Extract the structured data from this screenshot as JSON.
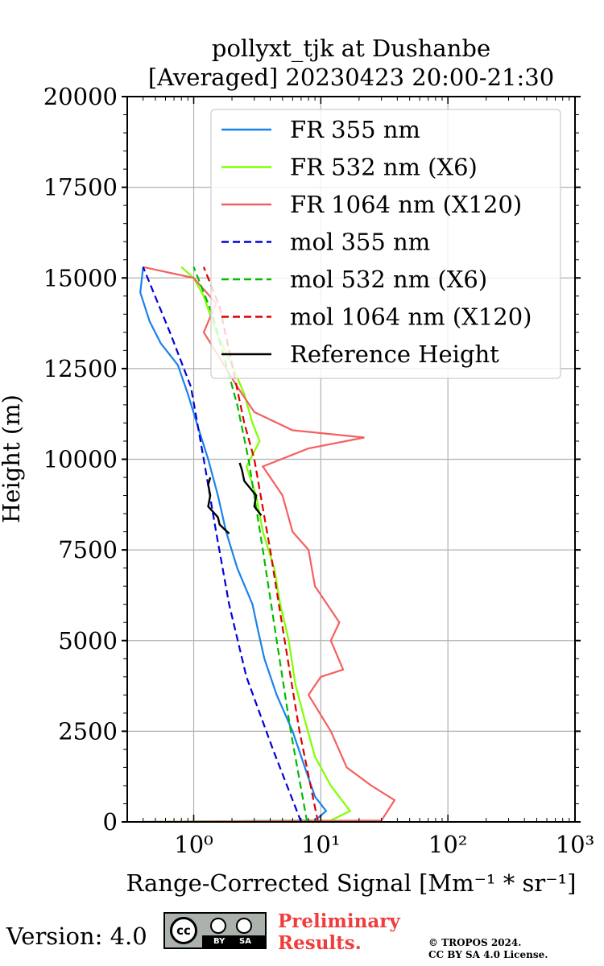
{
  "chart_data": {
    "type": "line",
    "title": [
      "pollyxt_tjk at Dushanbe",
      "[Averaged] 20230423 20:00-21:30"
    ],
    "xlabel": "Range-Corrected Signal [Mm⁻¹ * sr⁻¹]",
    "ylabel": "Height (m)",
    "x_scale": "log",
    "xlim": [
      0.3,
      1000
    ],
    "ylim": [
      0,
      20000
    ],
    "x_ticks": [
      {
        "value": 1,
        "label": "10⁰"
      },
      {
        "value": 10,
        "label": "10¹"
      },
      {
        "value": 100,
        "label": "10²"
      },
      {
        "value": 1000,
        "label": "10³"
      }
    ],
    "y_ticks": [
      "0",
      "2500",
      "5000",
      "7500",
      "10000",
      "12500",
      "15000",
      "17500",
      "20000"
    ],
    "grid": true,
    "legend_position": "upper-right",
    "series": [
      {
        "name": "FR 355 nm",
        "color": "#1a82eb",
        "style": "solid",
        "points": [
          [
            0.4,
            0
          ],
          [
            9,
            40
          ],
          [
            11,
            300
          ],
          [
            9,
            700
          ],
          [
            7.5,
            1500
          ],
          [
            6,
            2500
          ],
          [
            4.5,
            3500
          ],
          [
            3.6,
            4500
          ],
          [
            3.2,
            5300
          ],
          [
            2.9,
            6000
          ],
          [
            2.2,
            7000
          ],
          [
            1.8,
            8000
          ],
          [
            1.55,
            9000
          ],
          [
            1.3,
            10000
          ],
          [
            1.1,
            10800
          ],
          [
            0.9,
            11800
          ],
          [
            0.75,
            12600
          ],
          [
            0.55,
            13200
          ],
          [
            0.45,
            13800
          ],
          [
            0.38,
            14600
          ],
          [
            0.4,
            15300
          ]
        ]
      },
      {
        "name": "FR 532 nm (X6)",
        "color": "#7fff00",
        "style": "solid",
        "points": [
          [
            0.4,
            0
          ],
          [
            12,
            40
          ],
          [
            17,
            300
          ],
          [
            12,
            1000
          ],
          [
            9,
            1800
          ],
          [
            7.5,
            2800
          ],
          [
            6.3,
            3800
          ],
          [
            5.6,
            5000
          ],
          [
            4.8,
            6000
          ],
          [
            4.3,
            7000
          ],
          [
            3.5,
            8000
          ],
          [
            3.1,
            9000
          ],
          [
            2.6,
            9800
          ],
          [
            3.3,
            10500
          ],
          [
            2.9,
            11000
          ],
          [
            2.5,
            11800
          ],
          [
            2,
            12600
          ],
          [
            1.5,
            13500
          ],
          [
            1.2,
            14500
          ],
          [
            1,
            15000
          ],
          [
            0.8,
            15300
          ]
        ]
      },
      {
        "name": "FR 1064 nm (X120)",
        "color": "#f46060",
        "style": "solid",
        "points": [
          [
            0.45,
            0
          ],
          [
            30,
            40
          ],
          [
            38,
            600
          ],
          [
            25,
            1000
          ],
          [
            16,
            1500
          ],
          [
            12,
            2500
          ],
          [
            8,
            3500
          ],
          [
            10,
            4000
          ],
          [
            15,
            4200
          ],
          [
            12,
            5000
          ],
          [
            14,
            5500
          ],
          [
            9,
            6500
          ],
          [
            8,
            7500
          ],
          [
            6,
            8000
          ],
          [
            5,
            9000
          ],
          [
            3.5,
            9800
          ],
          [
            8,
            10300
          ],
          [
            22,
            10600
          ],
          [
            6,
            10800
          ],
          [
            3,
            11300
          ],
          [
            2.2,
            12000
          ],
          [
            1.6,
            12800
          ],
          [
            1.2,
            13500
          ],
          [
            1.5,
            14300
          ],
          [
            1,
            15000
          ],
          [
            0.4,
            15300
          ]
        ]
      },
      {
        "name": "mol 355 nm",
        "color": "#0000dd",
        "style": "dashed",
        "points": [
          [
            7,
            0
          ],
          [
            4.2,
            2000
          ],
          [
            2.6,
            4000
          ],
          [
            1.9,
            6000
          ],
          [
            1.5,
            8000
          ],
          [
            1.2,
            10000
          ],
          [
            0.95,
            12000
          ],
          [
            0.65,
            13500
          ],
          [
            0.4,
            15300
          ]
        ]
      },
      {
        "name": "mol 532 nm (X6)",
        "color": "#00bb00",
        "style": "dashed",
        "points": [
          [
            7.8,
            0
          ],
          [
            5.8,
            2500
          ],
          [
            4.5,
            5000
          ],
          [
            3.5,
            7500
          ],
          [
            2.7,
            10000
          ],
          [
            2.2,
            11500
          ],
          [
            1.4,
            14000
          ],
          [
            1,
            15300
          ]
        ]
      },
      {
        "name": "mol 1064 nm (X120)",
        "color": "#dd0000",
        "style": "dashed",
        "points": [
          [
            9.5,
            0
          ],
          [
            6.8,
            2500
          ],
          [
            5.2,
            5000
          ],
          [
            4,
            7500
          ],
          [
            3,
            10000
          ],
          [
            2.5,
            11000
          ],
          [
            1.9,
            13000
          ],
          [
            1.6,
            14200
          ],
          [
            1.2,
            15300
          ]
        ]
      },
      {
        "name": "Reference Height",
        "color": "#000000",
        "style": "solid",
        "segments": [
          [
            [
              1.9,
              7950
            ],
            [
              1.6,
              8200
            ],
            [
              1.55,
              8400
            ],
            [
              1.3,
              8700
            ],
            [
              1.35,
              9000
            ],
            [
              1.3,
              9300
            ],
            [
              1.35,
              9500
            ]
          ],
          [
            [
              3.4,
              8450
            ],
            [
              3.0,
              8700
            ],
            [
              3.1,
              9000
            ],
            [
              2.5,
              9400
            ],
            [
              2.4,
              9700
            ],
            [
              2.3,
              9900
            ]
          ]
        ]
      }
    ]
  },
  "footer": {
    "version": "Version: 4.0",
    "license_badge": {
      "cc": "cc",
      "by": "BY",
      "sa": "SA",
      "icon": "cc-by-sa-badge"
    },
    "preliminary": [
      "Preliminary",
      "Results."
    ],
    "copyright": [
      "© TROPOS 2024.",
      "CC BY SA 4.0 License."
    ]
  }
}
